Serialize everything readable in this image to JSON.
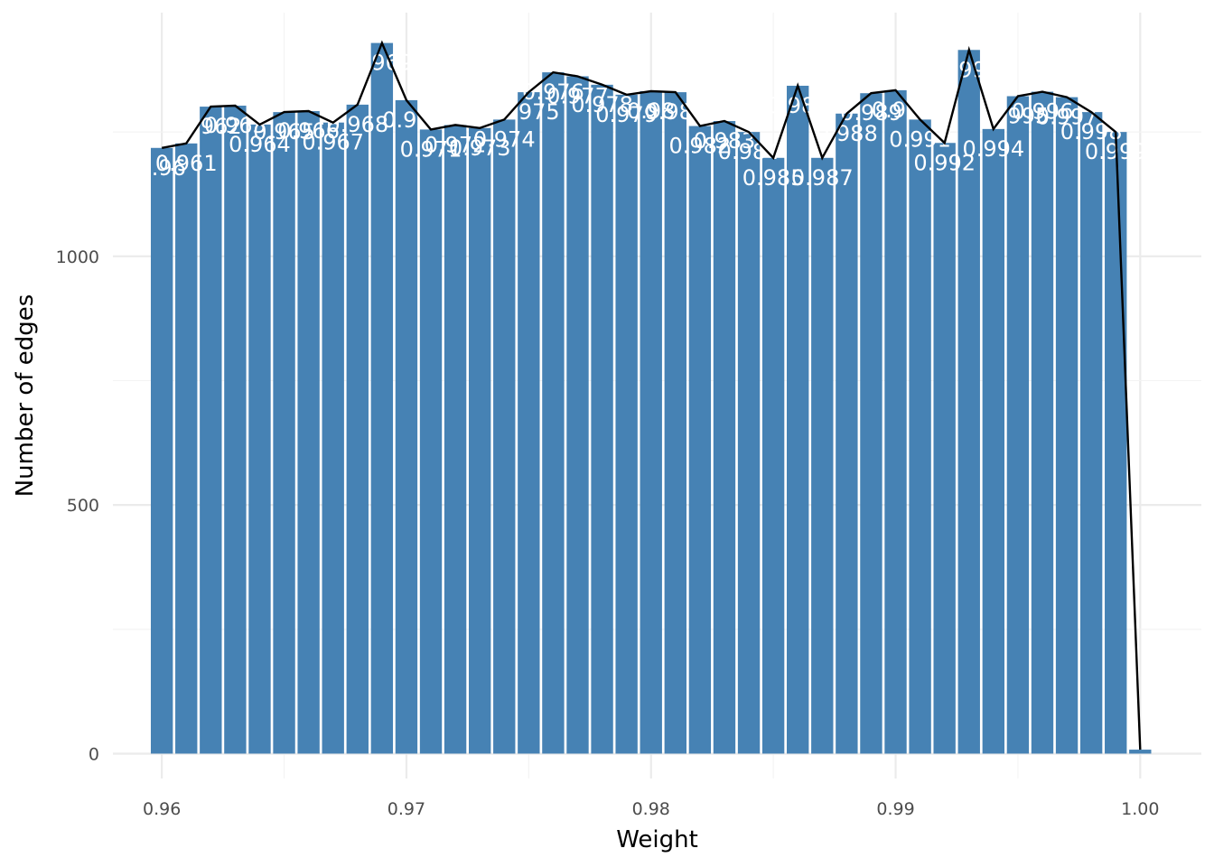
{
  "chart_data": {
    "type": "bar",
    "title": "",
    "xlabel": "Weight",
    "ylabel": "Number of edges",
    "xlim": [
      0.958,
      1.0025
    ],
    "ylim": [
      -50,
      1490
    ],
    "x_ticks": [
      "0.96",
      "0.97",
      "0.98",
      "0.99",
      "1.00"
    ],
    "x_tick_values": [
      0.96,
      0.97,
      0.98,
      0.99,
      1.0
    ],
    "y_ticks": [
      "0",
      "500",
      "1000"
    ],
    "y_tick_values": [
      0,
      500,
      1000
    ],
    "grid": true,
    "bar_color": "#4682b4",
    "line_color": "#000000",
    "label_color": "#ffffff",
    "bin_width": 0.001,
    "x": [
      0.96,
      0.961,
      0.962,
      0.963,
      0.964,
      0.965,
      0.966,
      0.967,
      0.968,
      0.969,
      0.97,
      0.971,
      0.972,
      0.973,
      0.974,
      0.975,
      0.976,
      0.977,
      0.978,
      0.979,
      0.98,
      0.981,
      0.982,
      0.983,
      0.984,
      0.985,
      0.986,
      0.987,
      0.988,
      0.989,
      0.99,
      0.991,
      0.992,
      0.993,
      0.994,
      0.995,
      0.996,
      0.997,
      0.998,
      0.999,
      1.0
    ],
    "values": [
      1218,
      1227,
      1301,
      1303,
      1265,
      1290,
      1292,
      1269,
      1305,
      1429,
      1314,
      1255,
      1264,
      1258,
      1275,
      1330,
      1370,
      1362,
      1345,
      1325,
      1332,
      1330,
      1262,
      1272,
      1250,
      1198,
      1343,
      1198,
      1287,
      1328,
      1334,
      1275,
      1228,
      1415,
      1256,
      1322,
      1331,
      1320,
      1290,
      1250,
      8
    ],
    "labels": [
      "0.96",
      "0.961",
      "0.962",
      "0.963",
      "0.964",
      "0.965",
      "0.966",
      "0.967",
      "0.968",
      "0.969",
      "0.97",
      "0.971",
      "0.972",
      "0.973",
      "0.974",
      "0.975",
      "0.976",
      "0.977",
      "0.978",
      "0.979",
      "0.98",
      "0.981",
      "0.982",
      "0.983",
      "0.984",
      "0.985",
      "0.986",
      "0.987",
      "0.988",
      "0.989",
      "0.99",
      "0.991",
      "0.992",
      "0.993",
      "0.994",
      "0.995",
      "0.996",
      "0.997",
      "0.998",
      "0.999",
      "1"
    ]
  }
}
